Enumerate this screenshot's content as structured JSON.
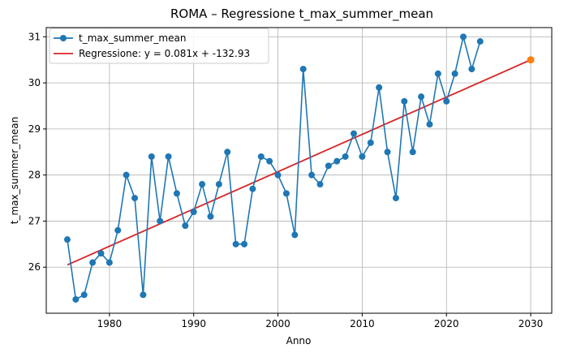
{
  "chart_data": {
    "type": "line",
    "title": "ROMA – Regressione t_max_summer_mean",
    "xlabel": "Anno",
    "ylabel": "t_max_summer_mean",
    "xlim": [
      1972.5,
      2032.5
    ],
    "ylim": [
      25.0,
      31.2
    ],
    "xticks": [
      1980,
      1990,
      2000,
      2010,
      2020,
      2030
    ],
    "yticks": [
      26,
      27,
      28,
      29,
      30,
      31
    ],
    "grid": true,
    "legend_position": "top-left",
    "series": [
      {
        "name": "t_max_summer_mean",
        "type": "line-markers",
        "color": "#1f77b4",
        "points": [
          [
            1975,
            26.6
          ],
          [
            1976,
            25.3
          ],
          [
            1977,
            25.4
          ],
          [
            1978,
            26.1
          ],
          [
            1979,
            26.3
          ],
          [
            1980,
            26.1
          ],
          [
            1981,
            26.8
          ],
          [
            1982,
            28.0
          ],
          [
            1983,
            27.5
          ],
          [
            1984,
            25.4
          ],
          [
            1985,
            28.4
          ],
          [
            1986,
            27.0
          ],
          [
            1987,
            28.4
          ],
          [
            1988,
            27.6
          ],
          [
            1989,
            26.9
          ],
          [
            1990,
            27.2
          ],
          [
            1991,
            27.8
          ],
          [
            1992,
            27.1
          ],
          [
            1993,
            27.8
          ],
          [
            1994,
            28.5
          ],
          [
            1995,
            26.5
          ],
          [
            1996,
            26.5
          ],
          [
            1997,
            27.7
          ],
          [
            1998,
            28.4
          ],
          [
            1999,
            28.3
          ],
          [
            2000,
            28.0
          ],
          [
            2001,
            27.6
          ],
          [
            2002,
            26.7
          ],
          [
            2003,
            30.3
          ],
          [
            2004,
            28.0
          ],
          [
            2005,
            27.8
          ],
          [
            2006,
            28.2
          ],
          [
            2007,
            28.3
          ],
          [
            2008,
            28.4
          ],
          [
            2009,
            28.9
          ],
          [
            2010,
            28.4
          ],
          [
            2011,
            28.7
          ],
          [
            2012,
            29.9
          ],
          [
            2013,
            28.5
          ],
          [
            2014,
            27.5
          ],
          [
            2015,
            29.6
          ],
          [
            2016,
            28.5
          ],
          [
            2017,
            29.7
          ],
          [
            2018,
            29.1
          ],
          [
            2019,
            30.2
          ],
          [
            2020,
            29.6
          ],
          [
            2021,
            30.2
          ],
          [
            2022,
            31.0
          ],
          [
            2023,
            30.3
          ],
          [
            2024,
            30.9
          ]
        ]
      },
      {
        "name": "Regressione: y = 0.081x + -132.93",
        "type": "line",
        "color": "#d62728",
        "points": [
          [
            1975,
            26.05
          ],
          [
            2030,
            30.5
          ]
        ]
      }
    ],
    "highlight_point": {
      "x": 2030,
      "y": 30.5,
      "color": "#ff7f0e"
    }
  }
}
